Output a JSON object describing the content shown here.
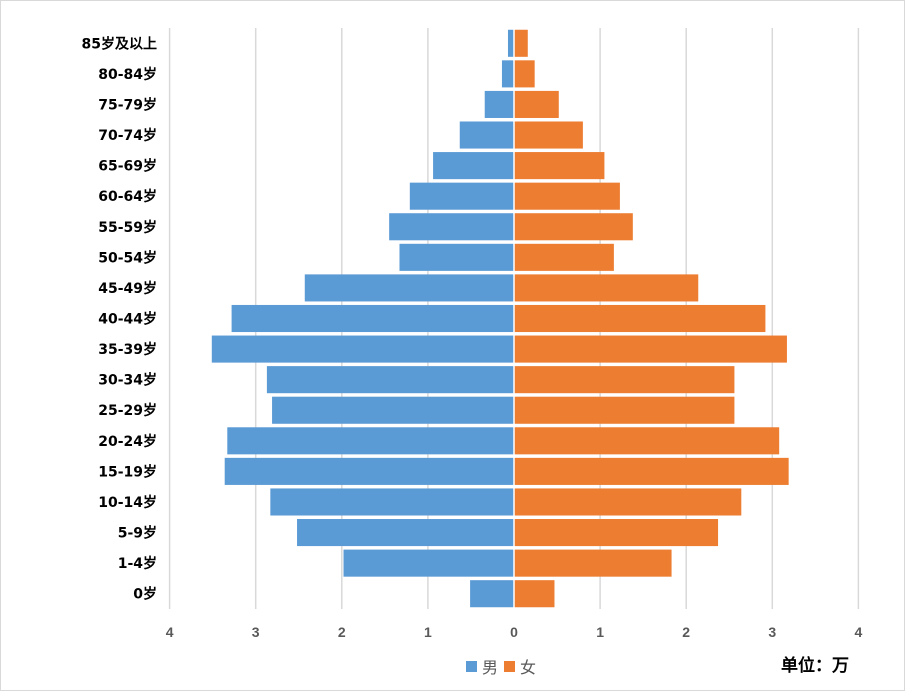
{
  "chart_data": {
    "type": "bar",
    "orientation": "horizontal-pyramid",
    "categories": [
      "0岁",
      "1-4岁",
      "5-9岁",
      "10-14岁",
      "15-19岁",
      "20-24岁",
      "25-29岁",
      "30-34岁",
      "35-39岁",
      "40-44岁",
      "45-49岁",
      "50-54岁",
      "55-59岁",
      "60-64岁",
      "65-69岁",
      "70-74岁",
      "75-79岁",
      "80-84岁",
      "85岁及以上"
    ],
    "series": [
      {
        "name": "男",
        "color": "#5b9bd5",
        "values": [
          0.51,
          1.98,
          2.52,
          2.83,
          3.36,
          3.33,
          2.81,
          2.87,
          3.51,
          3.28,
          2.43,
          1.33,
          1.45,
          1.21,
          0.94,
          0.63,
          0.34,
          0.14,
          0.07
        ]
      },
      {
        "name": "女",
        "color": "#ed7d31",
        "values": [
          0.47,
          1.83,
          2.37,
          2.64,
          3.19,
          3.08,
          2.56,
          2.56,
          3.17,
          2.92,
          2.14,
          1.16,
          1.38,
          1.23,
          1.05,
          0.8,
          0.52,
          0.24,
          0.16
        ]
      }
    ],
    "xticks": [
      "4",
      "3",
      "2",
      "1",
      "0",
      "1",
      "2",
      "3",
      "4"
    ],
    "xlim": [
      -4,
      4
    ],
    "grid": true,
    "legend": "bottom-center",
    "unit_label": "单位：万"
  }
}
